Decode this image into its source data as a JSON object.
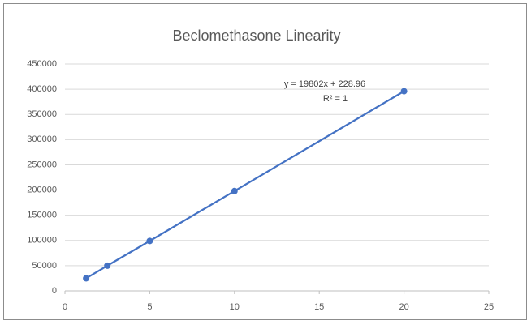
{
  "chart_data": {
    "type": "scatter",
    "title": "Beclomethasone Linearity",
    "x": [
      1.25,
      2.5,
      5,
      10,
      20
    ],
    "series": [
      {
        "color": "#4472c4",
        "values": [
          25000,
          50000,
          99000,
          198000,
          396000
        ]
      }
    ],
    "xlim": [
      0,
      25
    ],
    "xticks": [
      0,
      5,
      10,
      15,
      20,
      25
    ],
    "ylim": [
      0,
      450000
    ],
    "yticks": [
      0,
      50000,
      100000,
      150000,
      200000,
      250000,
      300000,
      350000,
      400000,
      450000
    ],
    "grid": true,
    "connect_points": true,
    "markers": true,
    "annotations": [
      "y = 19802x + 228.96",
      "R² = 1"
    ]
  }
}
